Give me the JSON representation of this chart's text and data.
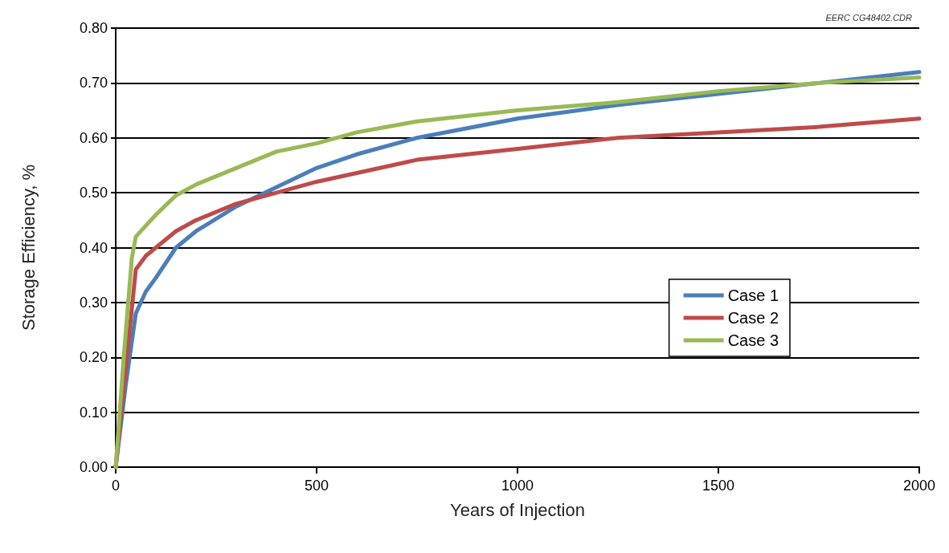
{
  "chart_data": {
    "type": "line",
    "xlabel": "Years of Injection",
    "ylabel": "Storage Efficiency, %",
    "annotations": [
      "EERC CG48402.CDR"
    ],
    "xlim": [
      0,
      2000
    ],
    "xticks": [
      0,
      500,
      1000,
      1500,
      2000
    ],
    "ylim": [
      0,
      0.8
    ],
    "yticks": [
      {
        "value": 0,
        "label": "0.00"
      },
      {
        "value": 0.1,
        "label": "0.10"
      },
      {
        "value": 0.2,
        "label": "0.20"
      },
      {
        "value": 0.3,
        "label": "0.30"
      },
      {
        "value": 0.4,
        "label": "0.40"
      },
      {
        "value": 0.5,
        "label": "0.50"
      },
      {
        "value": 0.6,
        "label": "0.60"
      },
      {
        "value": 0.7,
        "label": "0.70"
      },
      {
        "value": 0.8,
        "label": "0.80"
      }
    ],
    "grid": "y",
    "legend": "right",
    "marker": "none",
    "line_style": "solid",
    "series": [
      {
        "name": "Case 1",
        "color": "#4a7ebb",
        "x": [
          0,
          25,
          50,
          75,
          100,
          150,
          200,
          300,
          400,
          500,
          600,
          750,
          1000,
          1250,
          1500,
          1750,
          2000
        ],
        "values": [
          0,
          0.15,
          0.28,
          0.32,
          0.345,
          0.4,
          0.43,
          0.475,
          0.51,
          0.545,
          0.57,
          0.6,
          0.635,
          0.66,
          0.68,
          0.7,
          0.72
        ]
      },
      {
        "name": "Case 2",
        "color": "#be4b48",
        "x": [
          0,
          25,
          50,
          75,
          100,
          150,
          200,
          300,
          400,
          500,
          750,
          1000,
          1250,
          1500,
          1750,
          2000
        ],
        "values": [
          0,
          0.18,
          0.36,
          0.385,
          0.4,
          0.43,
          0.45,
          0.48,
          0.5,
          0.52,
          0.56,
          0.58,
          0.6,
          0.61,
          0.62,
          0.635
        ]
      },
      {
        "name": "Case 3",
        "color": "#98b954",
        "x": [
          0,
          20,
          40,
          50,
          75,
          100,
          150,
          200,
          300,
          400,
          500,
          600,
          750,
          1000,
          1250,
          1500,
          1750,
          2000
        ],
        "values": [
          0,
          0.2,
          0.38,
          0.42,
          0.44,
          0.46,
          0.495,
          0.515,
          0.545,
          0.575,
          0.59,
          0.61,
          0.63,
          0.65,
          0.665,
          0.685,
          0.7,
          0.71
        ]
      }
    ]
  }
}
